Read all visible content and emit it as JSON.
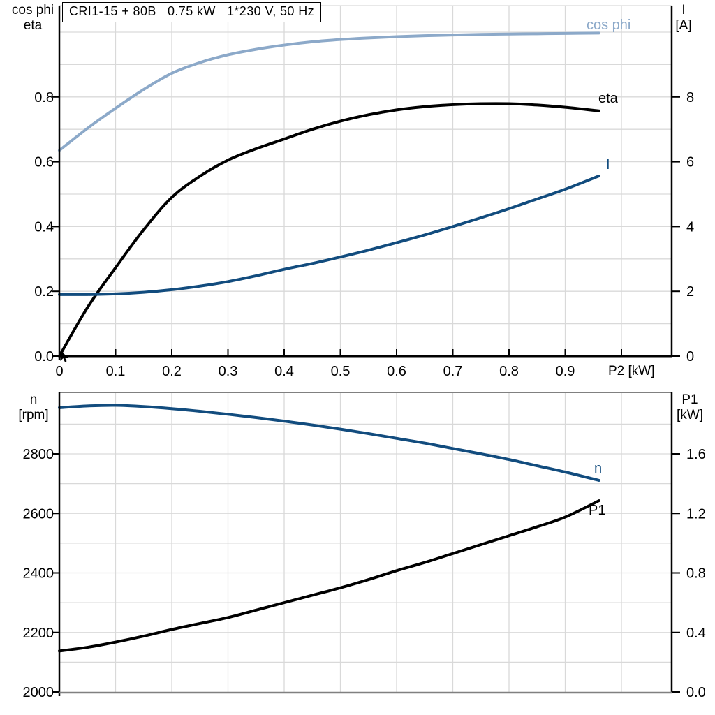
{
  "title_box": {
    "text": "CRI1-15 + 80B   0.75 kW   1*230 V, 50 Hz"
  },
  "colors": {
    "background": "#FFFFFF",
    "grid": "#D9D9D9",
    "axis": "#000000",
    "frame": "#808080",
    "curve_black": "#000000",
    "curve_dark_blue": "#124C7E",
    "curve_light_blue": "#8CA9C9"
  },
  "chart_data": [
    {
      "type": "line",
      "title": "",
      "x_axis": {
        "label": "P2 [kW]",
        "range": [
          0,
          1.09
        ],
        "tick_values": [
          0,
          0.1,
          0.2,
          0.3,
          0.4,
          0.5,
          0.6,
          0.7,
          0.8,
          0.9
        ],
        "tick_labels": [
          "0",
          "0.1",
          "0.2",
          "0.3",
          "0.4",
          "0.5",
          "0.6",
          "0.7",
          "0.8",
          "0.9"
        ],
        "tick_marks": [
          0,
          0.1,
          0.2,
          0.3,
          0.4,
          0.5,
          0.6,
          0.7,
          0.8,
          0.9,
          1.0
        ],
        "grid_values": [
          0.1,
          0.2,
          0.3,
          0.4,
          0.5,
          0.6,
          0.7,
          0.8,
          0.9,
          1.0
        ]
      },
      "left_axis": {
        "label_lines": [
          "cos phi",
          "eta"
        ],
        "range": [
          0,
          1.08
        ],
        "tick_values": [
          0.8,
          0.6,
          0.4,
          0.2,
          0
        ],
        "tick_labels": [
          "0.8",
          "0.6",
          "0.4",
          "0.2",
          "0.0"
        ],
        "grid_values": [
          0.1,
          0.2,
          0.3,
          0.4,
          0.5,
          0.6,
          0.7,
          0.8,
          0.9,
          1.0
        ]
      },
      "right_axis": {
        "label_lines": [
          "I",
          "[A]"
        ],
        "range": [
          0,
          10.8
        ],
        "tick_values": [
          8,
          6,
          4,
          2,
          0
        ],
        "tick_labels": [
          "8",
          "6",
          "4",
          "2",
          "0"
        ]
      },
      "series": [
        {
          "name": "cos phi",
          "axis": "left",
          "color": "#8CA9C9",
          "points": [
            [
              0,
              0.635
            ],
            [
              0.05,
              0.703
            ],
            [
              0.1,
              0.765
            ],
            [
              0.15,
              0.823
            ],
            [
              0.2,
              0.873
            ],
            [
              0.25,
              0.906
            ],
            [
              0.3,
              0.93
            ],
            [
              0.35,
              0.947
            ],
            [
              0.4,
              0.96
            ],
            [
              0.45,
              0.97
            ],
            [
              0.5,
              0.977
            ],
            [
              0.55,
              0.982
            ],
            [
              0.6,
              0.986
            ],
            [
              0.65,
              0.989
            ],
            [
              0.7,
              0.991
            ],
            [
              0.75,
              0.993
            ],
            [
              0.8,
              0.994
            ],
            [
              0.85,
              0.995
            ],
            [
              0.9,
              0.996
            ],
            [
              0.96,
              0.997
            ]
          ]
        },
        {
          "name": "eta",
          "axis": "left",
          "color": "#000000",
          "points": [
            [
              0,
              0
            ],
            [
              0.05,
              0.15
            ],
            [
              0.1,
              0.273
            ],
            [
              0.15,
              0.39
            ],
            [
              0.2,
              0.49
            ],
            [
              0.25,
              0.555
            ],
            [
              0.3,
              0.605
            ],
            [
              0.35,
              0.64
            ],
            [
              0.4,
              0.67
            ],
            [
              0.45,
              0.7
            ],
            [
              0.5,
              0.725
            ],
            [
              0.55,
              0.745
            ],
            [
              0.6,
              0.76
            ],
            [
              0.65,
              0.77
            ],
            [
              0.7,
              0.776
            ],
            [
              0.75,
              0.779
            ],
            [
              0.8,
              0.779
            ],
            [
              0.85,
              0.775
            ],
            [
              0.9,
              0.768
            ],
            [
              0.96,
              0.757
            ]
          ]
        },
        {
          "name": "I",
          "axis": "right",
          "color": "#124C7E",
          "points": [
            [
              0,
              1.9
            ],
            [
              0.05,
              1.9
            ],
            [
              0.1,
              1.92
            ],
            [
              0.15,
              1.97
            ],
            [
              0.2,
              2.05
            ],
            [
              0.25,
              2.16
            ],
            [
              0.3,
              2.3
            ],
            [
              0.35,
              2.48
            ],
            [
              0.4,
              2.68
            ],
            [
              0.45,
              2.86
            ],
            [
              0.5,
              3.06
            ],
            [
              0.55,
              3.27
            ],
            [
              0.6,
              3.5
            ],
            [
              0.65,
              3.74
            ],
            [
              0.7,
              4.0
            ],
            [
              0.75,
              4.27
            ],
            [
              0.8,
              4.55
            ],
            [
              0.85,
              4.85
            ],
            [
              0.9,
              5.15
            ],
            [
              0.96,
              5.56
            ]
          ]
        }
      ]
    },
    {
      "type": "line",
      "title": "",
      "x_axis": {
        "label": "",
        "range": [
          0,
          1.09
        ],
        "tick_values": [],
        "tick_labels": [],
        "tick_marks": [],
        "grid_values": [
          0.1,
          0.2,
          0.3,
          0.4,
          0.5,
          0.6,
          0.7,
          0.8,
          0.9,
          1.0
        ]
      },
      "left_axis": {
        "label_lines": [
          "n",
          "[rpm]"
        ],
        "range": [
          2000,
          3007
        ],
        "tick_values": [
          2800,
          2600,
          2400,
          2200,
          2000
        ],
        "tick_labels": [
          "2800",
          "2600",
          "2400",
          "2200",
          "2000"
        ],
        "grid_values": [
          2100,
          2200,
          2300,
          2400,
          2500,
          2600,
          2700,
          2800,
          2900
        ]
      },
      "right_axis": {
        "label_lines": [
          "P1",
          "[kW]"
        ],
        "range": [
          0,
          2.01
        ],
        "tick_values": [
          1.6,
          1.2,
          0.8,
          0.4,
          0
        ],
        "tick_labels": [
          "1.6",
          "1.2",
          "0.8",
          "0.4",
          "0.0"
        ]
      },
      "series": [
        {
          "name": "n",
          "axis": "left",
          "color": "#124C7E",
          "points": [
            [
              0,
              2955
            ],
            [
              0.05,
              2961
            ],
            [
              0.1,
              2963
            ],
            [
              0.15,
              2959
            ],
            [
              0.2,
              2952
            ],
            [
              0.25,
              2943
            ],
            [
              0.3,
              2933
            ],
            [
              0.35,
              2922
            ],
            [
              0.4,
              2910
            ],
            [
              0.45,
              2897
            ],
            [
              0.5,
              2883
            ],
            [
              0.55,
              2868
            ],
            [
              0.6,
              2852
            ],
            [
              0.65,
              2836
            ],
            [
              0.7,
              2818
            ],
            [
              0.75,
              2800
            ],
            [
              0.8,
              2781
            ],
            [
              0.85,
              2760
            ],
            [
              0.9,
              2739
            ],
            [
              0.96,
              2711
            ]
          ]
        },
        {
          "name": "P1",
          "axis": "right",
          "color": "#000000",
          "points": [
            [
              0,
              0.275
            ],
            [
              0.05,
              0.3
            ],
            [
              0.1,
              0.335
            ],
            [
              0.15,
              0.375
            ],
            [
              0.2,
              0.42
            ],
            [
              0.25,
              0.46
            ],
            [
              0.3,
              0.5
            ],
            [
              0.35,
              0.55
            ],
            [
              0.4,
              0.6
            ],
            [
              0.45,
              0.65
            ],
            [
              0.5,
              0.7
            ],
            [
              0.55,
              0.755
            ],
            [
              0.6,
              0.815
            ],
            [
              0.65,
              0.87
            ],
            [
              0.7,
              0.93
            ],
            [
              0.75,
              0.99
            ],
            [
              0.8,
              1.05
            ],
            [
              0.85,
              1.11
            ],
            [
              0.9,
              1.175
            ],
            [
              0.96,
              1.285
            ]
          ]
        }
      ]
    }
  ]
}
